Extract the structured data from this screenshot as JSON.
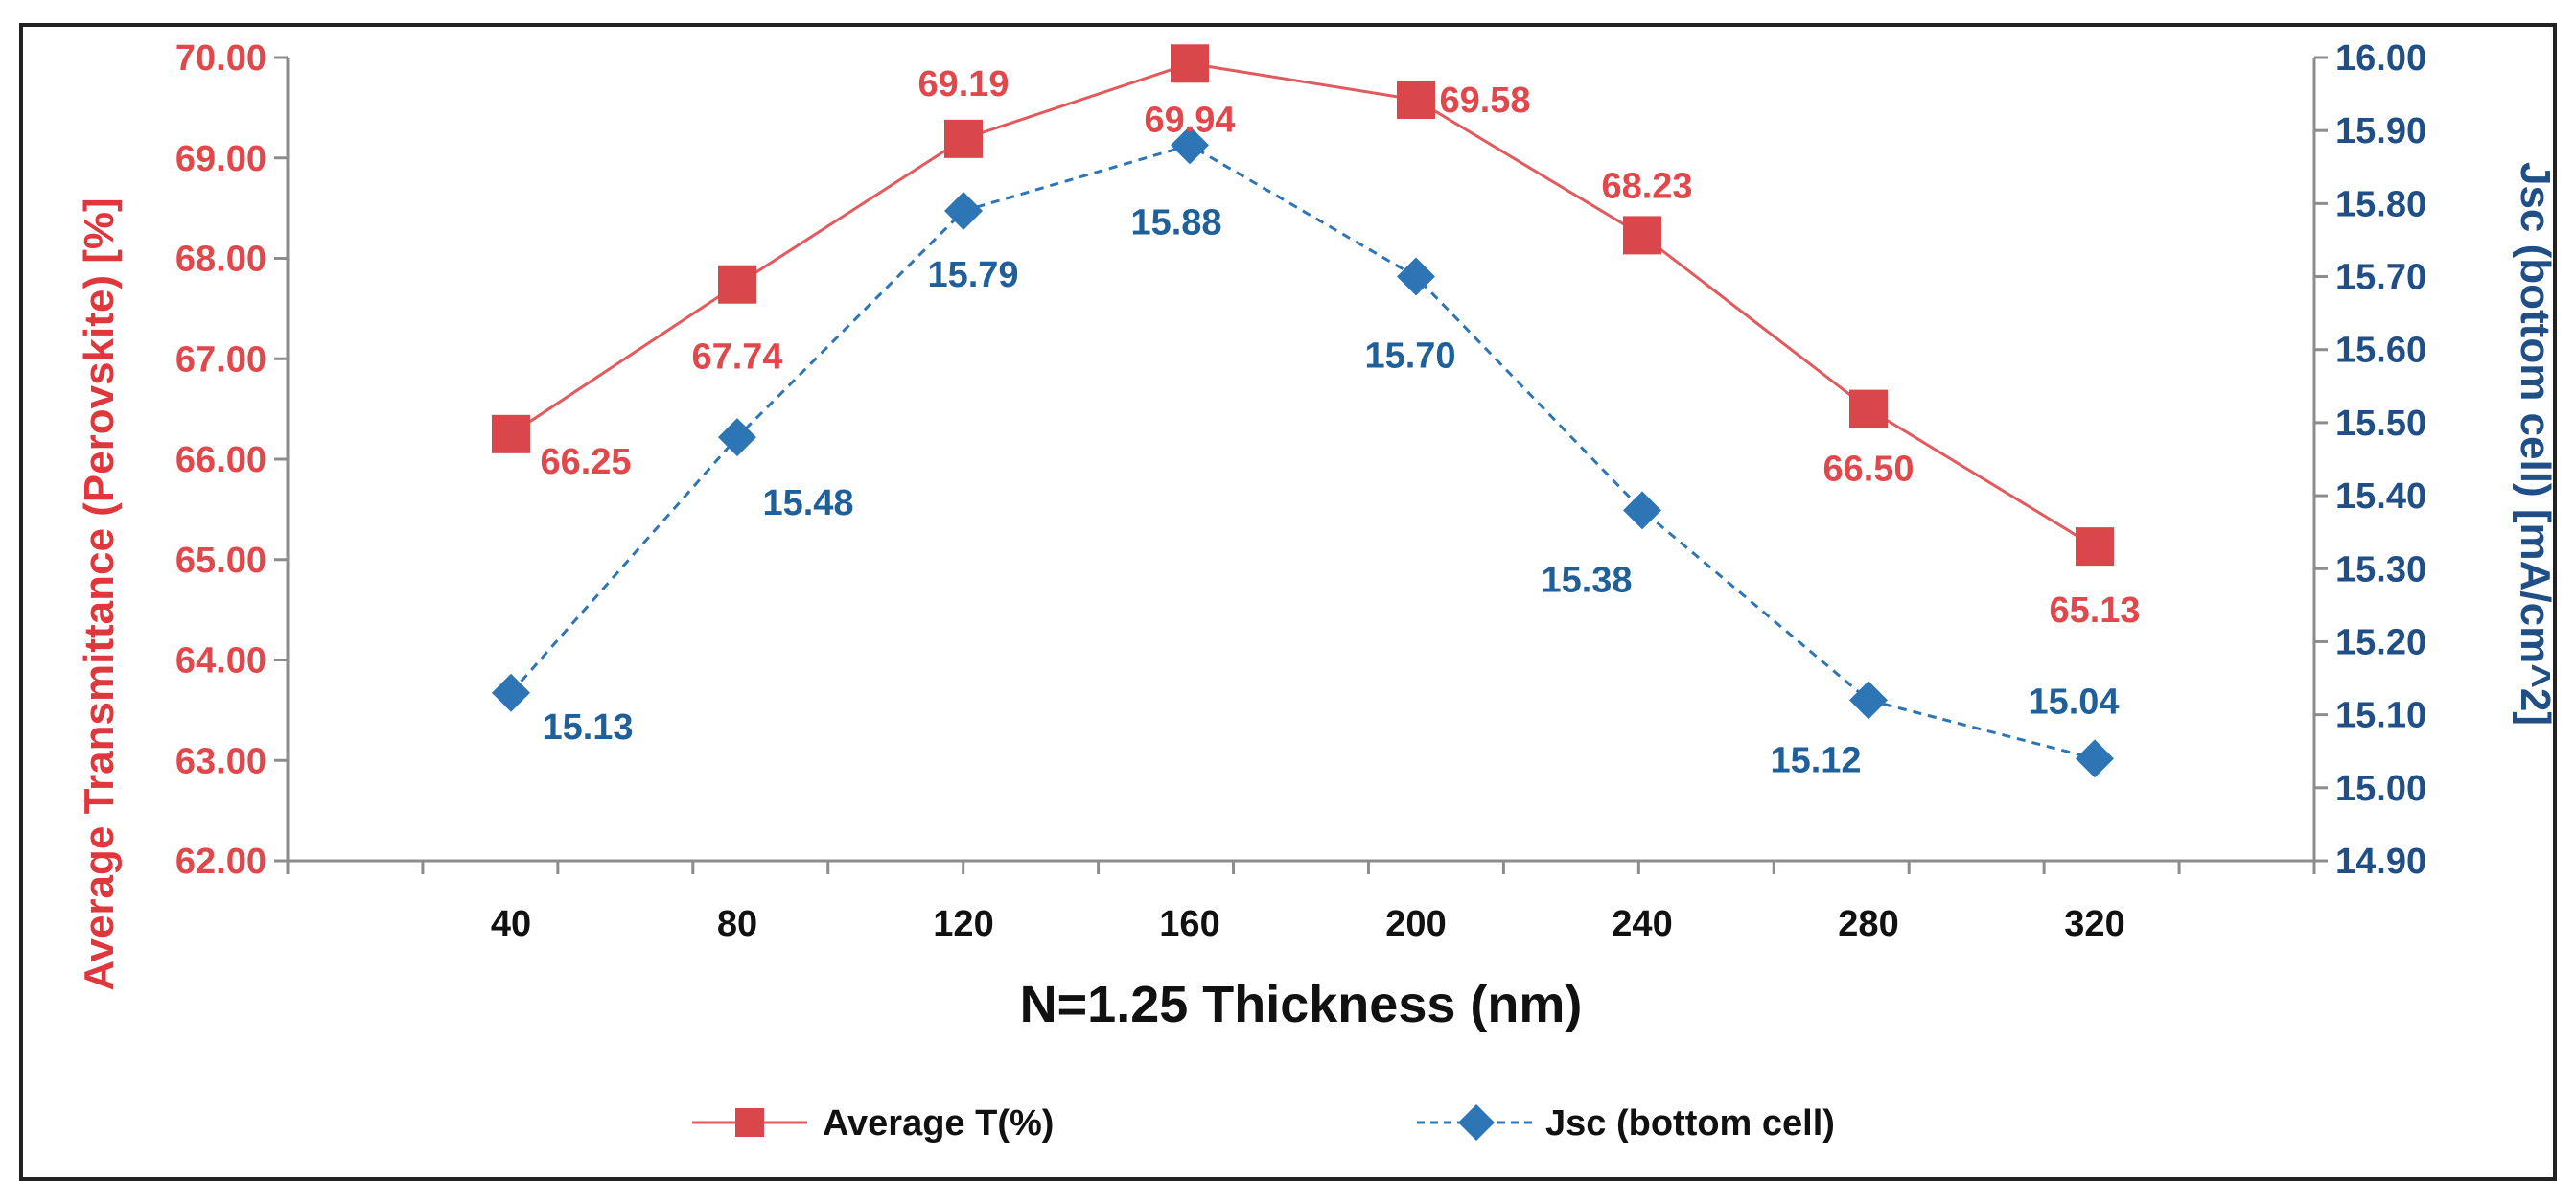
{
  "chart_data": {
    "type": "line",
    "x": [
      40,
      80,
      120,
      160,
      200,
      240,
      280,
      320
    ],
    "xlabel": "N=1.25 Thickness (nm)",
    "ylabel_left": "Average Transmittance (Perovskite) [%]",
    "ylabel_right": "Jsc (bottom cell) [mA/cm^2]",
    "ylim_left": [
      62.0,
      70.0
    ],
    "ylim_right": [
      14.9,
      16.0
    ],
    "yticks_left": [
      "62.00",
      "63.00",
      "64.00",
      "65.00",
      "66.00",
      "67.00",
      "68.00",
      "69.00",
      "70.00"
    ],
    "yticks_right": [
      "14.90",
      "15.00",
      "15.10",
      "15.20",
      "15.30",
      "15.40",
      "15.50",
      "15.60",
      "15.70",
      "15.80",
      "15.90",
      "16.00"
    ],
    "xticks": [
      "40",
      "80",
      "120",
      "160",
      "200",
      "240",
      "280",
      "320"
    ],
    "grid": false,
    "legend_position": "bottom",
    "series": [
      {
        "name": "Average T(%)",
        "axis": "left",
        "marker": "square",
        "line": "solid",
        "color": "#e05a5e",
        "values": [
          66.25,
          67.74,
          69.19,
          69.94,
          69.58,
          68.23,
          66.5,
          65.13
        ],
        "labels": [
          "66.25",
          "67.74",
          "69.19",
          "69.94",
          "69.58",
          "68.23",
          "66.50",
          "65.13"
        ]
      },
      {
        "name": "Jsc (bottom cell)",
        "axis": "right",
        "marker": "diamond",
        "line": "dashed",
        "color": "#2e75b6",
        "values": [
          15.13,
          15.48,
          15.79,
          15.88,
          15.7,
          15.38,
          15.12,
          15.04
        ],
        "labels": [
          "15.13",
          "15.48",
          "15.79",
          "15.88",
          "15.70",
          "15.38",
          "15.12",
          "15.04"
        ]
      }
    ]
  }
}
